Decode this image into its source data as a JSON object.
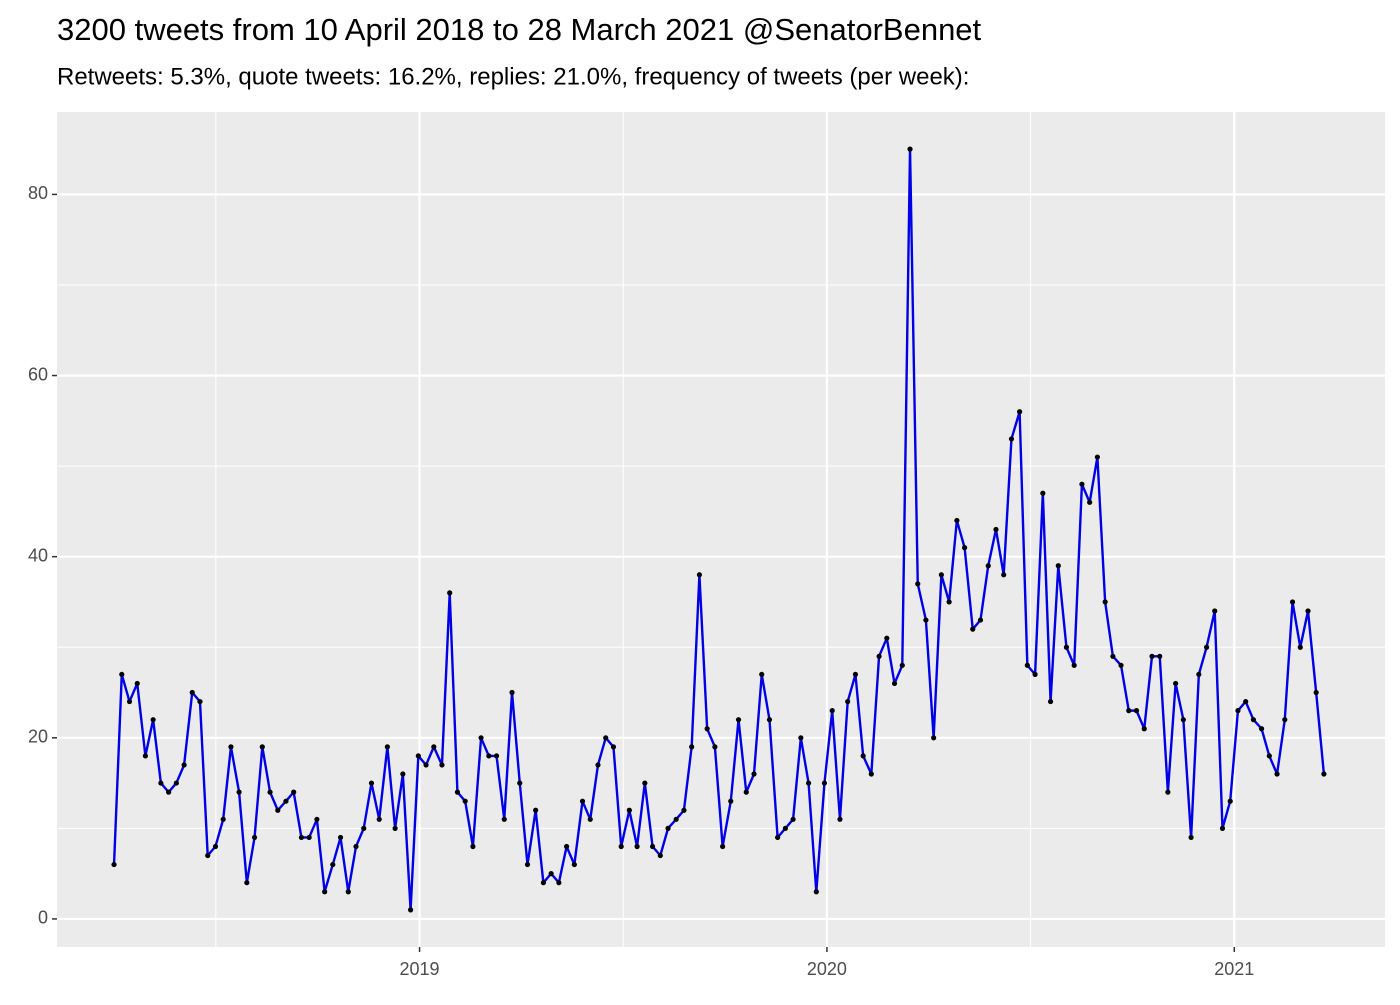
{
  "chart_data": {
    "type": "line",
    "title": "3200 tweets from 10 April 2018 to 28 March 2021 @SenatorBennet",
    "subtitle": "Retweets: 5.3%, quote tweets: 16.2%, replies: 21.0%, frequency of tweets (per week):",
    "x": [
      2018.25,
      2018.269,
      2018.288,
      2018.307,
      2018.327,
      2018.346,
      2018.365,
      2018.384,
      2018.403,
      2018.422,
      2018.442,
      2018.461,
      2018.48,
      2018.499,
      2018.518,
      2018.537,
      2018.557,
      2018.576,
      2018.595,
      2018.614,
      2018.633,
      2018.652,
      2018.672,
      2018.691,
      2018.71,
      2018.729,
      2018.748,
      2018.767,
      2018.787,
      2018.806,
      2018.825,
      2018.844,
      2018.863,
      2018.882,
      2018.901,
      2018.921,
      2018.94,
      2018.959,
      2018.978,
      2018.997,
      2019.016,
      2019.035,
      2019.055,
      2019.074,
      2019.093,
      2019.112,
      2019.131,
      2019.151,
      2019.17,
      2019.189,
      2019.208,
      2019.227,
      2019.246,
      2019.265,
      2019.285,
      2019.304,
      2019.323,
      2019.342,
      2019.361,
      2019.38,
      2019.4,
      2019.419,
      2019.438,
      2019.457,
      2019.476,
      2019.495,
      2019.515,
      2019.534,
      2019.553,
      2019.572,
      2019.591,
      2019.61,
      2019.63,
      2019.649,
      2019.668,
      2019.687,
      2019.706,
      2019.725,
      2019.744,
      2019.764,
      2019.783,
      2019.802,
      2019.821,
      2019.84,
      2019.859,
      2019.879,
      2019.898,
      2019.917,
      2019.936,
      2019.955,
      2019.974,
      2019.994,
      2020.013,
      2020.032,
      2020.051,
      2020.07,
      2020.089,
      2020.109,
      2020.128,
      2020.147,
      2020.166,
      2020.185,
      2020.204,
      2020.223,
      2020.243,
      2020.262,
      2020.281,
      2020.3,
      2020.319,
      2020.338,
      2020.358,
      2020.377,
      2020.396,
      2020.415,
      2020.434,
      2020.453,
      2020.473,
      2020.492,
      2020.511,
      2020.53,
      2020.549,
      2020.568,
      2020.588,
      2020.607,
      2020.626,
      2020.645,
      2020.664,
      2020.683,
      2020.702,
      2020.722,
      2020.741,
      2020.76,
      2020.779,
      2020.798,
      2020.817,
      2020.837,
      2020.856,
      2020.875,
      2020.894,
      2020.913,
      2020.932,
      2020.952,
      2020.971,
      2020.99,
      2021.009,
      2021.028,
      2021.047,
      2021.067,
      2021.086,
      2021.105,
      2021.124,
      2021.143,
      2021.162,
      2021.181,
      2021.201,
      2021.22
    ],
    "values": [
      6,
      27,
      24,
      26,
      18,
      22,
      15,
      14,
      15,
      17,
      25,
      24,
      7,
      8,
      11,
      19,
      14,
      4,
      9,
      19,
      14,
      12,
      13,
      14,
      9,
      9,
      11,
      3,
      6,
      9,
      3,
      8,
      10,
      15,
      11,
      19,
      10,
      16,
      1,
      18,
      17,
      19,
      17,
      36,
      14,
      13,
      8,
      20,
      18,
      18,
      11,
      25,
      15,
      6,
      12,
      4,
      5,
      4,
      8,
      6,
      13,
      11,
      17,
      20,
      19,
      8,
      12,
      8,
      15,
      8,
      7,
      10,
      11,
      12,
      19,
      38,
      21,
      19,
      8,
      13,
      22,
      14,
      16,
      27,
      22,
      9,
      10,
      11,
      20,
      15,
      3,
      15,
      23,
      11,
      24,
      27,
      18,
      16,
      29,
      31,
      26,
      28,
      85,
      37,
      33,
      20,
      38,
      35,
      44,
      41,
      32,
      33,
      39,
      43,
      38,
      53,
      56,
      28,
      27,
      47,
      24,
      39,
      30,
      28,
      48,
      46,
      51,
      35,
      29,
      28,
      23,
      23,
      21,
      29,
      29,
      14,
      26,
      22,
      9,
      27,
      30,
      34,
      10,
      13,
      23,
      24,
      22,
      21,
      18,
      16,
      22,
      35,
      30,
      34,
      25,
      16
    ],
    "line_color": "#0000e6",
    "point_color": "#000000",
    "xlim": [
      2018.11,
      2021.37
    ],
    "xticks": [
      2019,
      2020,
      2021
    ],
    "xminor": [
      2018.5,
      2019.5,
      2020.5
    ],
    "ylim": [
      -3.1,
      89.1
    ],
    "yticks": [
      0,
      20,
      40,
      60,
      80
    ],
    "yminor": [
      10,
      30,
      50,
      70
    ],
    "grid": true,
    "panel_color": "#ebebeb"
  }
}
